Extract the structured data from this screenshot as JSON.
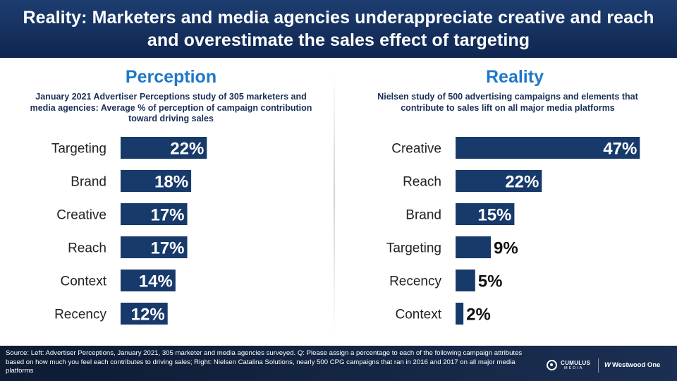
{
  "header": {
    "title": "Reality: Marketers and media agencies underappreciate creative and reach and overestimate the sales effect of targeting"
  },
  "colors": {
    "bar": "#173a6b",
    "title_blue": "#1f78c8",
    "text": "#222222"
  },
  "left": {
    "title": "Perception",
    "subtitle": "January 2021 Advertiser Perceptions study of 305 marketers and media agencies: Average % of perception of campaign contribution toward driving sales"
  },
  "right": {
    "title": "Reality",
    "subtitle": "Nielsen study of 500 advertising campaigns and elements that contribute to sales lift on all major media platforms"
  },
  "chart_data": [
    {
      "type": "bar",
      "orientation": "horizontal",
      "title": "Perception",
      "categories": [
        "Targeting",
        "Brand",
        "Creative",
        "Reach",
        "Context",
        "Recency"
      ],
      "values": [
        22,
        18,
        17,
        17,
        14,
        12
      ],
      "labels": [
        "22%",
        "18%",
        "17%",
        "17%",
        "14%",
        "12%"
      ],
      "xlim": [
        0,
        50
      ]
    },
    {
      "type": "bar",
      "orientation": "horizontal",
      "title": "Reality",
      "categories": [
        "Creative",
        "Reach",
        "Brand",
        "Targeting",
        "Recency",
        "Context"
      ],
      "values": [
        47,
        22,
        15,
        9,
        5,
        2
      ],
      "labels": [
        "47%",
        "22%",
        "15%",
        "9%",
        "5%",
        "2%"
      ],
      "xlim": [
        0,
        50
      ]
    }
  ],
  "footer": {
    "source": "Source: Left: Advertiser Perceptions, January 2021, 305 marketer and media agencies surveyed. Q: Please assign a percentage to each of the following campaign attributes based on how much you feel each contributes to driving sales; Right: Nielsen Catalina Solutions, nearly 500 CPG campaigns that ran in 2016 and 2017 on all major media platforms",
    "logo_cumulus": "CUMULUS",
    "logo_media": "MEDIA",
    "logo_westwood": "Westwood One"
  }
}
